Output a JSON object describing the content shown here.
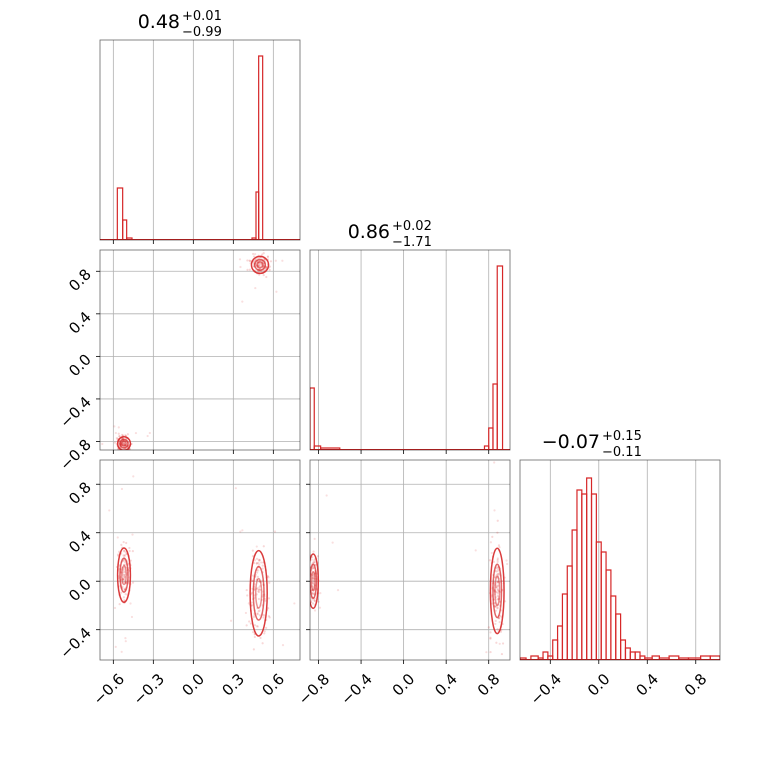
{
  "chart_data": {
    "type": "corner",
    "color": "#d62728",
    "grid": true,
    "panels": [
      {
        "id": "hist-p1",
        "kind": "hist",
        "title": {
          "value": "0.48",
          "plus": "+0.01",
          "minus": "−0.99"
        },
        "xlim": [
          -0.7,
          0.8
        ],
        "xticks": [
          -0.6,
          -0.3,
          0.0,
          0.3,
          0.6
        ],
        "bins": [
          [
            0.44,
            0.47,
            0.01
          ],
          [
            0.47,
            0.49,
            0.24
          ],
          [
            0.49,
            0.52,
            0.92
          ],
          [
            -0.57,
            -0.53,
            0.26
          ],
          [
            -0.53,
            -0.5,
            0.1
          ],
          [
            -0.5,
            -0.46,
            0.01
          ]
        ]
      },
      {
        "id": "scatter-p2-p1",
        "kind": "scatter",
        "xlim": [
          -0.7,
          0.8
        ],
        "ylim": [
          -0.88,
          1.0
        ],
        "xticks": [
          -0.6,
          -0.3,
          0.0,
          0.3,
          0.6
        ],
        "yticks": [
          -0.8,
          -0.4,
          0.0,
          0.4,
          0.8
        ],
        "ytick_labels": [
          "−0.8",
          "−0.4",
          "0.0",
          "0.4",
          "0.8"
        ],
        "clusters": [
          {
            "cx": 0.5,
            "cy": 0.86,
            "rx": 0.04,
            "ry": 0.05
          },
          {
            "cx": -0.52,
            "cy": -0.82,
            "rx": 0.03,
            "ry": 0.04
          }
        ]
      },
      {
        "id": "hist-p2",
        "kind": "hist",
        "title": {
          "value": "0.86",
          "plus": "+0.02",
          "minus": "−1.71"
        },
        "xlim": [
          -0.88,
          1.0
        ],
        "xticks": [
          -0.8,
          -0.4,
          0.0,
          0.4,
          0.8
        ],
        "xtick_labels": [
          "−0.8",
          "−0.4",
          "0.0",
          "0.4",
          "0.8"
        ],
        "bins": [
          [
            -0.88,
            -0.84,
            0.31
          ],
          [
            -0.84,
            -0.78,
            0.02
          ],
          [
            -0.78,
            -0.6,
            0.01
          ],
          [
            0.76,
            0.8,
            0.02
          ],
          [
            0.8,
            0.84,
            0.11
          ],
          [
            0.84,
            0.88,
            0.33
          ],
          [
            0.88,
            0.93,
            0.92
          ]
        ]
      },
      {
        "id": "scatter-p3-p1",
        "kind": "scatter",
        "xlim": [
          -0.7,
          0.8
        ],
        "ylim": [
          -0.65,
          1.0
        ],
        "xticks": [
          -0.6,
          -0.3,
          0.0,
          0.3,
          0.6
        ],
        "xtick_labels": [
          "−0.6",
          "−0.3",
          "0.0",
          "0.3",
          "0.6"
        ],
        "yticks": [
          -0.4,
          0.0,
          0.4,
          0.8
        ],
        "ytick_labels": [
          "−0.4",
          "0.0",
          "0.4",
          "0.8"
        ],
        "clusters": [
          {
            "cx": -0.52,
            "cy": 0.05,
            "rx": 0.03,
            "ry": 0.14
          },
          {
            "cx": 0.49,
            "cy": -0.1,
            "rx": 0.04,
            "ry": 0.22
          }
        ]
      },
      {
        "id": "scatter-p3-p2",
        "kind": "scatter",
        "xlim": [
          -0.88,
          1.0
        ],
        "ylim": [
          -0.65,
          1.0
        ],
        "xticks": [
          -0.8,
          -0.4,
          0.0,
          0.4,
          0.8
        ],
        "xtick_labels": [
          "−0.8",
          "−0.4",
          "0.0",
          "0.4",
          "0.8"
        ],
        "yticks": [
          -0.4,
          0.0,
          0.4,
          0.8
        ],
        "clusters": [
          {
            "cx": -0.85,
            "cy": 0.0,
            "rx": 0.03,
            "ry": 0.14
          },
          {
            "cx": 0.88,
            "cy": -0.08,
            "rx": 0.04,
            "ry": 0.22
          }
        ]
      },
      {
        "id": "hist-p3",
        "kind": "hist",
        "title": {
          "value": "−0.07",
          "plus": "+0.15",
          "minus": "−0.11"
        },
        "xlim": [
          -0.65,
          1.0
        ],
        "xticks": [
          -0.4,
          0.0,
          0.4,
          0.8
        ],
        "xtick_labels": [
          "−0.4",
          "0.0",
          "0.4",
          "0.8"
        ],
        "bins": [
          [
            -0.65,
            -0.6,
            0.01
          ],
          [
            -0.6,
            -0.56,
            0.0
          ],
          [
            -0.56,
            -0.5,
            0.02
          ],
          [
            -0.5,
            -0.46,
            0.01
          ],
          [
            -0.46,
            -0.42,
            0.04
          ],
          [
            -0.42,
            -0.38,
            0.02
          ],
          [
            -0.38,
            -0.34,
            0.1
          ],
          [
            -0.34,
            -0.3,
            0.17
          ],
          [
            -0.3,
            -0.26,
            0.33
          ],
          [
            -0.26,
            -0.22,
            0.47
          ],
          [
            -0.22,
            -0.18,
            0.65
          ],
          [
            -0.18,
            -0.14,
            0.85
          ],
          [
            -0.14,
            -0.1,
            0.83
          ],
          [
            -0.1,
            -0.06,
            0.91
          ],
          [
            -0.06,
            -0.02,
            0.83
          ],
          [
            -0.02,
            0.02,
            0.59
          ],
          [
            0.02,
            0.06,
            0.54
          ],
          [
            0.06,
            0.1,
            0.45
          ],
          [
            0.1,
            0.14,
            0.32
          ],
          [
            0.14,
            0.18,
            0.23
          ],
          [
            0.18,
            0.22,
            0.1
          ],
          [
            0.22,
            0.26,
            0.06
          ],
          [
            0.26,
            0.3,
            0.04
          ],
          [
            0.3,
            0.34,
            0.04
          ],
          [
            0.34,
            0.38,
            0.02
          ],
          [
            0.38,
            0.44,
            0.01
          ],
          [
            0.44,
            0.5,
            0.02
          ],
          [
            0.5,
            0.58,
            0.01
          ],
          [
            0.58,
            0.66,
            0.02
          ],
          [
            0.66,
            0.74,
            0.01
          ],
          [
            0.74,
            0.84,
            0.01
          ],
          [
            0.84,
            0.92,
            0.02
          ],
          [
            0.92,
            1.0,
            0.02
          ]
        ]
      }
    ]
  }
}
